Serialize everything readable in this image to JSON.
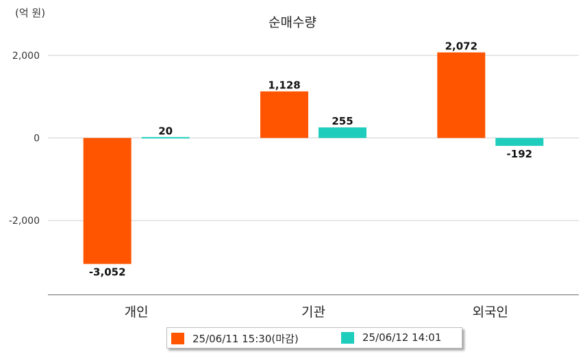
{
  "chart_data": {
    "type": "bar",
    "title": "순매수량",
    "unit_label": "(억 원)",
    "categories": [
      "개인",
      "기관",
      "외국인"
    ],
    "series": [
      {
        "name": "25/06/11 15:30(마감)",
        "color": "#FF5500",
        "values": [
          -3052,
          1128,
          2072
        ],
        "labels": [
          "-3,052",
          "1,128",
          "2,072"
        ]
      },
      {
        "name": "25/06/12 14:01",
        "color": "#1FCDBD",
        "values": [
          20,
          255,
          -192
        ],
        "labels": [
          "20",
          "255",
          "-192"
        ]
      }
    ],
    "y_ticks": [
      2000,
      0,
      -2000
    ],
    "y_tick_labels": [
      "2,000",
      "0",
      "-2,000"
    ],
    "ylim": [
      -3800,
      2550
    ],
    "grid": true,
    "legend_position": "bottom"
  }
}
